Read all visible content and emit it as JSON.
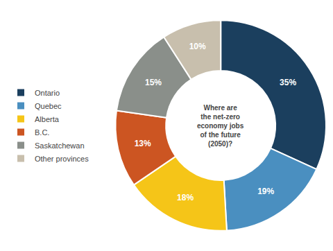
{
  "chart_data": {
    "type": "pie",
    "title": "Where are\nthe net-zero\neconomy jobs\nof the future\n(2050)?",
    "categories": [
      "Ontario",
      "Quebec",
      "Alberta",
      "B.C.",
      "Saskatchewan",
      "Other provinces"
    ],
    "values": [
      35,
      19,
      18,
      13,
      15,
      10
    ],
    "value_labels": [
      "35%",
      "19%",
      "18%",
      "13%",
      "15%",
      "10%"
    ],
    "colors": [
      "#1b3f5e",
      "#4a8fc0",
      "#f5c518",
      "#cc5522",
      "#8a8f8a",
      "#c8bfad"
    ],
    "data_labels": true,
    "legend": "left"
  }
}
